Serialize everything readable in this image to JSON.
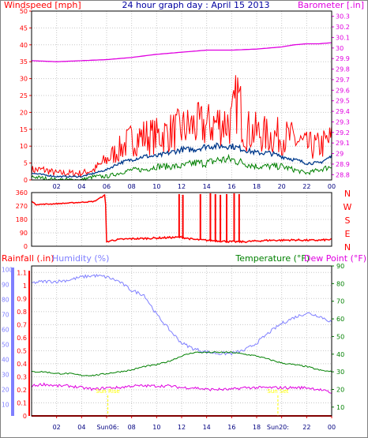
{
  "title": "24 hour graph day : April 15 2013",
  "colors": {
    "wind": "#ff0000",
    "wind_avg": "#003a8c",
    "wind_low": "#008000",
    "barometer": "#e000e0",
    "direction": "#ff0000",
    "rain": "#ff0000",
    "humidity": "#7f7fff",
    "temperature": "#008000",
    "dewpoint": "#e000e0",
    "sun": "#ffff00",
    "title": "#0000a0"
  },
  "x_ticks": [
    "02",
    "04",
    "06",
    "08",
    "10",
    "12",
    "14",
    "16",
    "18",
    "20",
    "22",
    "00"
  ],
  "chart_data": [
    {
      "type": "line",
      "name": "wind-barometer",
      "left_label": "Windspeed [mph]",
      "right_label": "Barometer [.in]",
      "left_ticks": [
        "0",
        "5",
        "10",
        "15",
        "20",
        "25",
        "30",
        "35",
        "40",
        "45",
        "50"
      ],
      "right_ticks": [
        "28.8",
        "28.9",
        "29",
        "29.1",
        "29.2",
        "29.3",
        "29.4",
        "29.5",
        "29.6",
        "29.7",
        "29.8",
        "29.9",
        "30",
        "30.1",
        "30.2",
        "30.3"
      ],
      "xlim_hours": [
        0,
        24
      ],
      "ylim_left": [
        0,
        50
      ],
      "ylim_right": [
        28.75,
        30.35
      ],
      "series": [
        {
          "key": "gust",
          "hours": [
            0,
            1,
            2,
            3,
            4,
            5,
            6,
            7,
            8,
            9,
            10,
            11,
            12,
            13,
            14,
            15,
            16,
            16.5,
            17,
            18,
            19,
            20,
            21,
            22,
            23,
            24
          ],
          "values": [
            3,
            3,
            2,
            2,
            2,
            3,
            6,
            9,
            12,
            13,
            13,
            14,
            15,
            16,
            16,
            17,
            17,
            25,
            15,
            14,
            13,
            13,
            12,
            10,
            10,
            12
          ]
        },
        {
          "key": "average",
          "hours": [
            0,
            2,
            4,
            5,
            6,
            7,
            8,
            9,
            10,
            11,
            12,
            13,
            14,
            15,
            16,
            17,
            18,
            19,
            20,
            21,
            22,
            23,
            24
          ],
          "values": [
            2,
            1,
            1,
            2,
            3,
            5,
            6,
            7,
            7,
            8,
            9,
            9,
            10,
            10,
            10,
            9,
            8,
            8,
            7,
            6,
            5,
            5,
            7
          ]
        },
        {
          "key": "low",
          "hours": [
            0,
            2,
            4,
            5,
            6,
            7,
            8,
            9,
            10,
            11,
            12,
            13,
            14,
            15,
            16,
            17,
            18,
            19,
            20,
            21,
            22,
            23,
            24
          ],
          "values": [
            1,
            0,
            0,
            1,
            1,
            2,
            3,
            3,
            4,
            4,
            4,
            5,
            5,
            6,
            6,
            5,
            4,
            4,
            4,
            3,
            2,
            3,
            4
          ]
        },
        {
          "key": "barometer",
          "hours": [
            0,
            2,
            4,
            6,
            8,
            10,
            12,
            14,
            16,
            18,
            20,
            21,
            22,
            23,
            24
          ],
          "values": [
            29.88,
            29.87,
            29.88,
            29.89,
            29.91,
            29.94,
            29.96,
            29.98,
            29.98,
            29.99,
            30.01,
            30.03,
            30.04,
            30.04,
            30.05
          ]
        }
      ]
    },
    {
      "type": "line",
      "name": "wind-direction",
      "left_ticks": [
        "0",
        "90",
        "180",
        "270",
        "360"
      ],
      "right_ticks": [
        "N",
        "W",
        "S",
        "E",
        "N"
      ],
      "xlim_hours": [
        0,
        24
      ],
      "ylim": [
        0,
        360
      ],
      "series": [
        {
          "key": "direction",
          "hours": [
            0,
            0.3,
            1,
            2,
            3,
            4,
            5,
            5.9,
            6.0,
            6.5,
            7,
            8,
            9,
            10,
            11,
            12,
            13,
            14,
            15,
            16,
            17,
            18,
            19,
            20,
            21,
            22,
            23,
            24
          ],
          "values": [
            305,
            280,
            282,
            285,
            290,
            295,
            300,
            345,
            30,
            40,
            45,
            50,
            52,
            55,
            58,
            60,
            45,
            40,
            35,
            30,
            30,
            35,
            40,
            40,
            42,
            40,
            40,
            45
          ]
        }
      ],
      "spikes": [
        {
          "hour": 11.8,
          "value": 350
        },
        {
          "hour": 12.1,
          "value": 345
        },
        {
          "hour": 13.5,
          "value": 350
        },
        {
          "hour": 14.3,
          "value": 355
        },
        {
          "hour": 14.7,
          "value": 350
        },
        {
          "hour": 15.1,
          "value": 345
        },
        {
          "hour": 15.6,
          "value": 350
        },
        {
          "hour": 16.2,
          "value": 355
        },
        {
          "hour": 16.6,
          "value": 350
        }
      ]
    },
    {
      "type": "line",
      "name": "rain-humidity-temperature",
      "labels": {
        "rain": "Rainfall (.in)",
        "humidity": "Humidity (%)",
        "temperature": "Temperature (°F)",
        "dewpoint": "Dew Point (°F)"
      },
      "rain_ticks": [
        "0",
        "0.1",
        "0.2",
        "0.3",
        "0.4",
        "0.5",
        "0.6",
        "0.7",
        "0.8",
        "0.9",
        "1",
        "1.1"
      ],
      "humidity_ticks": [
        "10",
        "20",
        "30",
        "40",
        "50",
        "60",
        "70",
        "80",
        "90",
        "100"
      ],
      "temp_ticks": [
        "10",
        "20",
        "30",
        "40",
        "50",
        "60",
        "70",
        "80",
        "90"
      ],
      "xlim_hours": [
        0,
        24
      ],
      "ylim_rain": [
        0,
        1.15
      ],
      "ylim_temp": [
        5,
        90
      ],
      "series": [
        {
          "key": "rain",
          "hours": [
            0,
            24
          ],
          "values": [
            0,
            0
          ]
        },
        {
          "key": "humidity",
          "hours": [
            0,
            1,
            2,
            3,
            4,
            5,
            6,
            7,
            8,
            9,
            10,
            11,
            12,
            13,
            14,
            15,
            16,
            17,
            18,
            19,
            20,
            21,
            22,
            23,
            24
          ],
          "values": [
            91,
            92,
            92,
            93,
            95,
            96,
            95,
            92,
            86,
            83,
            70,
            60,
            51,
            47,
            45,
            44,
            44,
            46,
            51,
            58,
            64,
            68,
            71,
            69,
            65
          ]
        },
        {
          "key": "temperature",
          "hours": [
            0,
            1,
            2,
            3,
            4,
            5,
            6,
            7,
            8,
            9,
            10,
            11,
            12,
            13,
            14,
            15,
            16,
            17,
            18,
            19,
            20,
            21,
            22,
            23,
            24
          ],
          "values": [
            30,
            30,
            29,
            29,
            28,
            28,
            29,
            30,
            31,
            33,
            34,
            36,
            39,
            41,
            41,
            41,
            41,
            40,
            39,
            37,
            35,
            34,
            33,
            31,
            30
          ]
        },
        {
          "key": "dewpoint",
          "hours": [
            0,
            1,
            2,
            3,
            4,
            5,
            6,
            7,
            8,
            9,
            10,
            11,
            12,
            13,
            14,
            15,
            16,
            17,
            18,
            19,
            20,
            21,
            22,
            23,
            24
          ],
          "values": [
            22,
            23,
            22,
            22,
            21,
            20,
            21,
            21,
            22,
            22,
            22,
            22,
            21,
            21,
            20,
            20,
            20,
            21,
            21,
            21,
            21,
            21,
            21,
            20,
            18
          ]
        }
      ],
      "sun_markers": [
        {
          "hour": 6.1,
          "label": "Sun Rise",
          "tick_label": "Sun06:"
        },
        {
          "hour": 19.7,
          "label": "Sun Set",
          "tick_label": "Sun20:"
        }
      ]
    }
  ]
}
